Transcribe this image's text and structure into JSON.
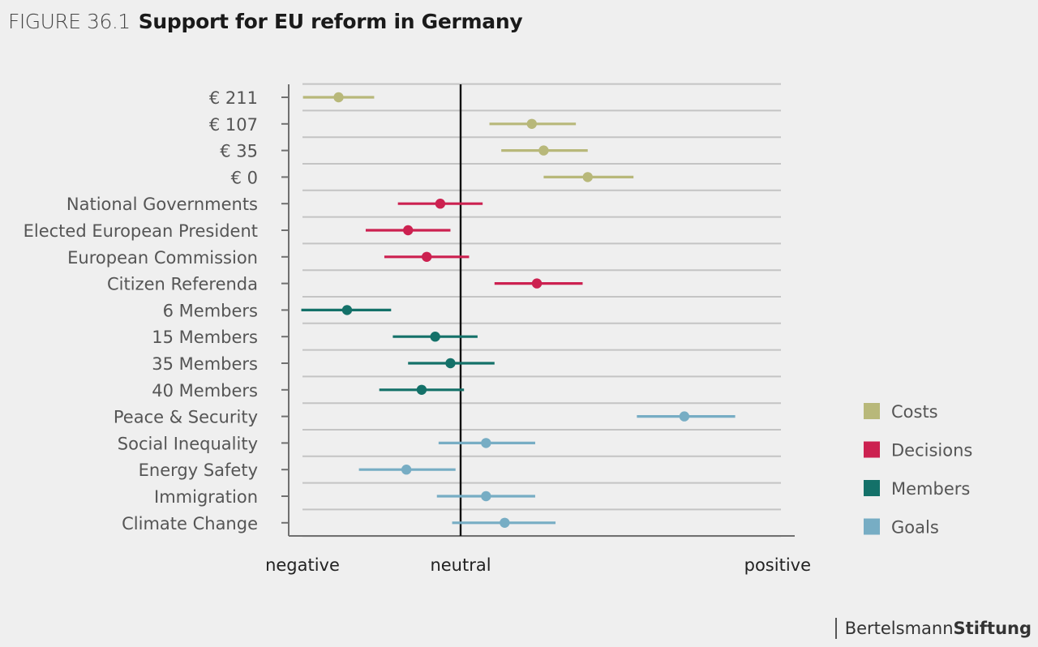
{
  "figure": {
    "number": "FIGURE 36.1",
    "title": "Support for EU reform in Germany"
  },
  "brand": {
    "part1": "Bertelsmann",
    "part2": "Stiftung"
  },
  "chart_data": {
    "type": "dot-whisker",
    "x_axis": {
      "range": [
        -1,
        2
      ],
      "neutral": 0,
      "labels": [
        "negative",
        "neutral",
        "positive"
      ]
    },
    "grid": true,
    "legend_position": "right",
    "groups": [
      {
        "name": "Costs",
        "color": "#b8b87a"
      },
      {
        "name": "Decisions",
        "color": "#cc2150"
      },
      {
        "name": "Members",
        "color": "#147169"
      },
      {
        "name": "Goals",
        "color": "#77adc4"
      }
    ],
    "rows": [
      {
        "label": "€ 211",
        "group": "Costs",
        "estimate": -0.72,
        "low": -0.93,
        "high": -0.51
      },
      {
        "label": "€ 107",
        "group": "Costs",
        "estimate": 0.42,
        "low": 0.17,
        "high": 0.68
      },
      {
        "label": "€ 35",
        "group": "Costs",
        "estimate": 0.49,
        "low": 0.24,
        "high": 0.75
      },
      {
        "label": "€ 0",
        "group": "Costs",
        "estimate": 0.75,
        "low": 0.49,
        "high": 1.02
      },
      {
        "label": "National Governments",
        "group": "Decisions",
        "estimate": -0.12,
        "low": -0.37,
        "high": 0.13
      },
      {
        "label": "Elected European President",
        "group": "Decisions",
        "estimate": -0.31,
        "low": -0.56,
        "high": -0.06
      },
      {
        "label": "European Commission",
        "group": "Decisions",
        "estimate": -0.2,
        "low": -0.45,
        "high": 0.05
      },
      {
        "label": "Citizen Referenda",
        "group": "Decisions",
        "estimate": 0.45,
        "low": 0.2,
        "high": 0.72
      },
      {
        "label": "6 Members",
        "group": "Members",
        "estimate": -0.67,
        "low": -0.94,
        "high": -0.41
      },
      {
        "label": "15 Members",
        "group": "Members",
        "estimate": -0.15,
        "low": -0.4,
        "high": 0.1
      },
      {
        "label": "35 Members",
        "group": "Members",
        "estimate": -0.06,
        "low": -0.31,
        "high": 0.2
      },
      {
        "label": "40 Members",
        "group": "Members",
        "estimate": -0.23,
        "low": -0.48,
        "high": 0.02
      },
      {
        "label": "Peace & Security",
        "group": "Goals",
        "estimate": 1.32,
        "low": 1.04,
        "high": 1.62
      },
      {
        "label": "Social Inequality",
        "group": "Goals",
        "estimate": 0.15,
        "low": -0.13,
        "high": 0.44
      },
      {
        "label": "Energy Safety",
        "group": "Goals",
        "estimate": -0.32,
        "low": -0.6,
        "high": -0.03
      },
      {
        "label": "Immigration",
        "group": "Goals",
        "estimate": 0.15,
        "low": -0.14,
        "high": 0.44
      },
      {
        "label": "Climate Change",
        "group": "Goals",
        "estimate": 0.26,
        "low": -0.05,
        "high": 0.56
      }
    ]
  }
}
